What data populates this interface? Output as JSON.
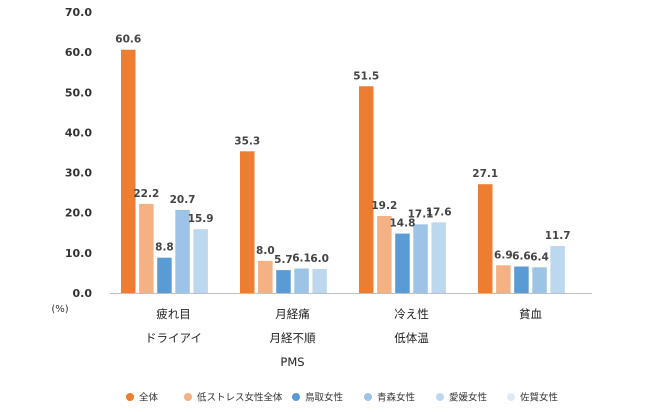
{
  "chart_data": {
    "type": "bar",
    "y_unit_label": "(%)",
    "ylim": [
      0,
      70
    ],
    "yticks": [
      "0.0",
      "10.0",
      "20.0",
      "30.0",
      "40.0",
      "50.0",
      "60.0",
      "70.0"
    ],
    "grid": false,
    "legend_position": "bottom",
    "categories": [
      [
        "疲れ目",
        "ドライアイ"
      ],
      [
        "月経痛",
        "月経不順",
        "PMS"
      ],
      [
        "冷え性",
        "低体温"
      ],
      [
        "貧血"
      ]
    ],
    "series": [
      {
        "name": "全体",
        "color": "#ed7d31",
        "values": [
          60.6,
          35.3,
          51.5,
          27.1
        ],
        "labels": [
          "60.6",
          "35.3",
          "51.5",
          "27.1"
        ]
      },
      {
        "name": "低ストレス女性全体",
        "color": "#f4b183",
        "values": [
          22.2,
          8.0,
          19.2,
          6.9
        ],
        "labels": [
          "22.2",
          "8.0",
          "19.2",
          "6.9"
        ]
      },
      {
        "name": "鳥取女性",
        "color": "#5b9bd5",
        "values": [
          8.8,
          5.7,
          14.8,
          6.6
        ],
        "labels": [
          "8.8",
          "5.7",
          "14.8",
          "6.6"
        ]
      },
      {
        "name": "青森女性",
        "color": "#9dc3e6",
        "values": [
          20.7,
          6.1,
          17.1,
          6.4
        ],
        "labels": [
          "20.7",
          "6.1",
          "17.1",
          "6.4"
        ]
      },
      {
        "name": "愛媛女性",
        "color": "#bdd7ee",
        "values": [
          15.9,
          6.0,
          17.6,
          11.7
        ],
        "labels": [
          "15.9",
          "6.0",
          "17.6",
          "11.7"
        ]
      },
      {
        "name": "佐賀女性",
        "color": "#deebf7",
        "values": [
          null,
          null,
          null,
          null
        ],
        "labels": [
          null,
          null,
          null,
          null
        ]
      }
    ]
  }
}
